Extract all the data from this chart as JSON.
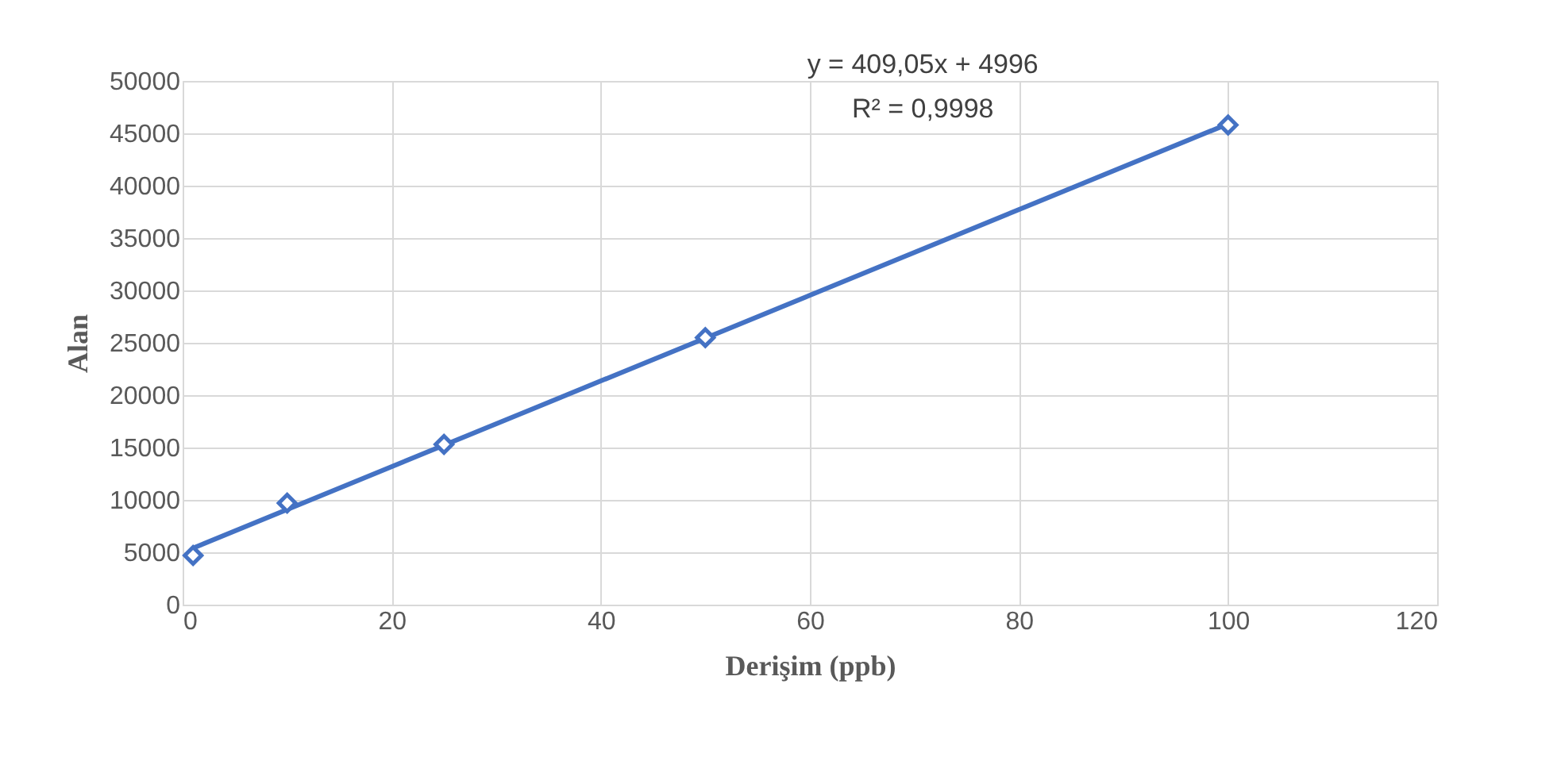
{
  "chart_data": {
    "type": "scatter",
    "xlabel": "Derişim (ppb)",
    "ylabel": "Alan",
    "series": [
      {
        "type": "line",
        "color": "#4472c4",
        "x": [
          1,
          100
        ],
        "values": [
          5400,
          45900
        ],
        "line_style": "solid",
        "marker": "none"
      },
      {
        "color": "#4472c4",
        "x": [
          1,
          10,
          25,
          50,
          100
        ],
        "values": [
          4700,
          9700,
          15300,
          25500,
          45800
        ],
        "marker": "diamond"
      }
    ],
    "xlim": [
      0,
      120
    ],
    "xticks": [
      0,
      20,
      40,
      60,
      80,
      100,
      120
    ],
    "ylim": [
      0,
      50000
    ],
    "yticks": [
      0,
      5000,
      10000,
      15000,
      20000,
      25000,
      30000,
      35000,
      40000,
      45000,
      50000
    ],
    "grid": true,
    "annotations": [
      "y = 409,05x + 4996",
      "R² = 0,9998"
    ]
  }
}
